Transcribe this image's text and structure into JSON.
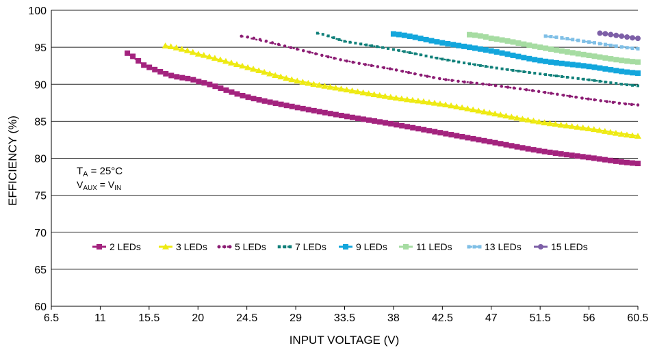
{
  "chart_data": {
    "type": "line",
    "xlabel": "INPUT VOLTAGE (V)",
    "ylabel": "EFFICIENCY (%)",
    "xlim": [
      6.5,
      60.5
    ],
    "ylim": [
      60,
      100
    ],
    "xticks": [
      "6.5",
      "11",
      "15.5",
      "20",
      "24.5",
      "29",
      "33.5",
      "38",
      "42.5",
      "47",
      "51.5",
      "56",
      "60.5"
    ],
    "yticks": [
      "60",
      "65",
      "70",
      "75",
      "80",
      "85",
      "90",
      "95",
      "100"
    ],
    "grid": "horizontal",
    "legend_position": "center-left",
    "annotations": {
      "ta": {
        "main": "T",
        "sub": "A",
        "rest": " = 25°C"
      },
      "vaux": {
        "main1": "V",
        "sub1": "AUX",
        "mid": " = V",
        "sub2": "IN"
      }
    },
    "series": [
      {
        "name": "2 LEDs",
        "color": "#a3237e",
        "marker": "square",
        "dash": "solid",
        "x": [
          13.5,
          15,
          17.5,
          20,
          24.5,
          29,
          33.5,
          38,
          42.5,
          47,
          51.5,
          56,
          60.5
        ],
        "y": [
          94.2,
          92.6,
          91.2,
          90.4,
          88.3,
          86.9,
          85.7,
          84.6,
          83.4,
          82.2,
          81.0,
          80.1,
          79.3
        ]
      },
      {
        "name": "3 LEDs",
        "color": "#eeea12",
        "marker": "triangle",
        "dash": "solid",
        "x": [
          17,
          20,
          24.5,
          29,
          33.5,
          38,
          42.5,
          47,
          51.5,
          56,
          60.5
        ],
        "y": [
          95.2,
          94.1,
          92.3,
          90.5,
          89.3,
          88.2,
          87.3,
          86.1,
          84.9,
          84.0,
          83.0
        ]
      },
      {
        "name": "5 LEDs",
        "color": "#8b1c73",
        "marker": "circle",
        "dash": "dotted",
        "x": [
          24,
          29,
          33.5,
          38,
          42.5,
          47,
          51.5,
          56,
          60.5
        ],
        "y": [
          96.5,
          94.8,
          93.2,
          92.0,
          90.7,
          89.9,
          89.0,
          88.0,
          87.2
        ]
      },
      {
        "name": "7 LEDs",
        "color": "#11807a",
        "marker": "square",
        "dash": "dotted",
        "x": [
          31,
          33.5,
          38,
          42.5,
          47,
          51.5,
          56,
          60.5
        ],
        "y": [
          96.9,
          95.8,
          94.7,
          93.4,
          92.3,
          91.4,
          90.6,
          89.8
        ]
      },
      {
        "name": "9 LEDs",
        "color": "#13a6dc",
        "marker": "square",
        "dash": "solid",
        "x": [
          38,
          42.5,
          47,
          51.5,
          56,
          60.5
        ],
        "y": [
          96.8,
          95.6,
          94.5,
          93.2,
          92.4,
          91.5
        ]
      },
      {
        "name": "11 LEDs",
        "color": "#a6dca2",
        "marker": "square",
        "dash": "solid",
        "x": [
          45,
          47,
          51.5,
          56,
          60.5
        ],
        "y": [
          96.7,
          96.2,
          95.0,
          93.9,
          93.0
        ]
      },
      {
        "name": "13 LEDs",
        "color": "#7fbfe6",
        "marker": "square",
        "dash": "dashed",
        "x": [
          52,
          56,
          60.5
        ],
        "y": [
          96.5,
          95.7,
          94.8
        ]
      },
      {
        "name": "15 LEDs",
        "color": "#7d5fa7",
        "marker": "circle",
        "dash": "solid",
        "x": [
          57,
          58.5,
          60.5
        ],
        "y": [
          96.9,
          96.6,
          96.2
        ]
      }
    ]
  }
}
